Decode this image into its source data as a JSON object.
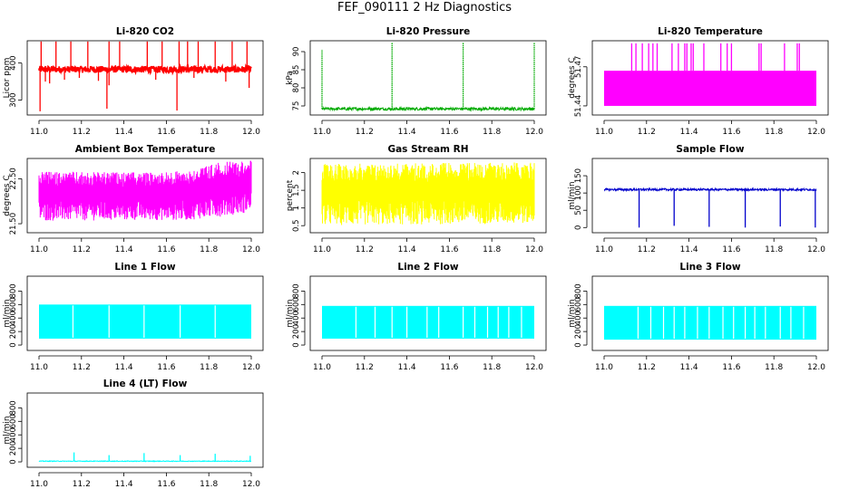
{
  "title": "FEF_090111  2 Hz Diagnostics",
  "chart_data": [
    {
      "type": "line",
      "title": "Li-820 CO2",
      "ylabel": "Licor ppm",
      "xlim": [
        11.0,
        12.0
      ],
      "ylim": [
        260,
        460
      ],
      "xticks": [
        "11.0",
        "11.2",
        "11.4",
        "11.6",
        "11.8",
        "12.0"
      ],
      "yticks": [
        300,
        400
      ],
      "color": "#ff0000",
      "style": "noisy-band",
      "baseline": 383,
      "band": [
        374,
        392
      ],
      "dips": [
        [
          11.005,
          270
        ],
        [
          11.03,
          350
        ],
        [
          11.05,
          345
        ],
        [
          11.12,
          355
        ],
        [
          11.19,
          360
        ],
        [
          11.28,
          352
        ],
        [
          11.32,
          277
        ],
        [
          11.33,
          340
        ],
        [
          11.55,
          355
        ],
        [
          11.65,
          272
        ],
        [
          11.73,
          360
        ],
        [
          11.88,
          350
        ],
        [
          11.99,
          333
        ]
      ],
      "spikes": [
        [
          11.01,
          458
        ],
        [
          11.08,
          458
        ],
        [
          11.15,
          458
        ],
        [
          11.23,
          458
        ],
        [
          11.33,
          458
        ],
        [
          11.38,
          458
        ],
        [
          11.51,
          458
        ],
        [
          11.58,
          458
        ],
        [
          11.66,
          458
        ],
        [
          11.7,
          458
        ],
        [
          11.75,
          458
        ],
        [
          11.83,
          458
        ],
        [
          11.91,
          458
        ],
        [
          11.98,
          458
        ]
      ]
    },
    {
      "type": "line",
      "title": "Li-820 Pressure",
      "ylabel": "kPa",
      "xlim": [
        11.0,
        12.0
      ],
      "ylim": [
        72.5,
        93
      ],
      "xticks": [
        "11.0",
        "11.2",
        "11.4",
        "11.6",
        "11.8",
        "12.0"
      ],
      "yticks": [
        75,
        80,
        85,
        90
      ],
      "color": "#00aa00",
      "style": "flat-spikes",
      "baseline": 74.2,
      "band": [
        73.8,
        74.6
      ],
      "spikes": [
        [
          11.0,
          90.5
        ],
        [
          11.33,
          92.5
        ],
        [
          11.665,
          92.5
        ],
        [
          12.0,
          92.5
        ]
      ]
    },
    {
      "type": "line",
      "title": "Li-820 Temperature",
      "ylabel": "degrees C",
      "xlim": [
        11.0,
        12.0
      ],
      "ylim": [
        51.433,
        51.49
      ],
      "xticks": [
        "11.0",
        "11.2",
        "11.4",
        "11.6",
        "11.8",
        "12.0"
      ],
      "yticks": [
        51.44,
        51.47
      ],
      "color": "#ff00ff",
      "style": "block-spikes",
      "band": [
        51.44,
        51.467
      ],
      "spikes": [
        [
          11.13,
          51.488
        ],
        [
          11.15,
          51.488
        ],
        [
          11.18,
          51.488
        ],
        [
          11.21,
          51.488
        ],
        [
          11.23,
          51.488
        ],
        [
          11.25,
          51.488
        ],
        [
          11.32,
          51.488
        ],
        [
          11.35,
          51.488
        ],
        [
          11.38,
          51.488
        ],
        [
          11.39,
          51.488
        ],
        [
          11.41,
          51.488
        ],
        [
          11.42,
          51.488
        ],
        [
          11.47,
          51.488
        ],
        [
          11.55,
          51.488
        ],
        [
          11.58,
          51.488
        ],
        [
          11.6,
          51.488
        ],
        [
          11.73,
          51.488
        ],
        [
          11.74,
          51.488
        ],
        [
          11.85,
          51.488
        ],
        [
          11.91,
          51.488
        ],
        [
          11.92,
          51.488
        ]
      ]
    },
    {
      "type": "line",
      "title": "Ambient Box Temperature",
      "ylabel": "degrees C",
      "xlim": [
        11.0,
        12.0
      ],
      "ylim": [
        21.3,
        22.95
      ],
      "xticks": [
        "11.0",
        "11.2",
        "11.4",
        "11.6",
        "11.8",
        "12.0"
      ],
      "yticks": [
        21.5,
        22.5
      ],
      "color": "#ff00ff",
      "style": "noisy-fill",
      "band_low": [
        [
          11.0,
          21.62
        ],
        [
          11.7,
          21.64
        ],
        [
          11.85,
          21.72
        ],
        [
          12.0,
          21.82
        ]
      ],
      "band_high": [
        [
          11.0,
          22.6
        ],
        [
          11.5,
          22.58
        ],
        [
          11.7,
          22.62
        ],
        [
          11.85,
          22.8
        ],
        [
          12.0,
          22.85
        ]
      ]
    },
    {
      "type": "line",
      "title": "Gas Stream RH",
      "ylabel": "percent",
      "xlim": [
        11.0,
        12.0
      ],
      "ylim": [
        0.3,
        2.4
      ],
      "xticks": [
        "11.0",
        "11.2",
        "11.4",
        "11.6",
        "11.8",
        "12.0"
      ],
      "yticks": [
        0.5,
        1.0,
        1.5,
        2.0
      ],
      "color": "#ffff00",
      "style": "noisy-fill",
      "band_low": [
        [
          11.0,
          0.6
        ],
        [
          12.0,
          0.65
        ]
      ],
      "band_high": [
        [
          11.0,
          2.15
        ],
        [
          12.0,
          2.2
        ]
      ]
    },
    {
      "type": "line",
      "title": "Sample Flow",
      "ylabel": "ml/min",
      "xlim": [
        11.0,
        12.0
      ],
      "ylim": [
        -15,
        200
      ],
      "xticks": [
        "11.0",
        "11.2",
        "11.4",
        "11.6",
        "11.8",
        "12.0"
      ],
      "yticks": [
        0,
        50,
        100,
        150
      ],
      "color": "#0000cc",
      "style": "flat-dips",
      "baseline": 110,
      "band": [
        107,
        113
      ],
      "dips": [
        [
          11.165,
          0
        ],
        [
          11.33,
          5
        ],
        [
          11.495,
          2
        ],
        [
          11.665,
          0
        ],
        [
          11.83,
          3
        ],
        [
          11.995,
          0
        ]
      ]
    },
    {
      "type": "line",
      "title": "Line 1 Flow",
      "ylabel": "ml/min",
      "xlim": [
        11.0,
        12.0
      ],
      "ylim": [
        -80,
        1020
      ],
      "xticks": [
        "11.0",
        "11.2",
        "11.4",
        "11.6",
        "11.8",
        "12.0"
      ],
      "yticks": [
        0,
        200,
        400,
        600,
        800
      ],
      "color": "#00ffff",
      "style": "block-gaps",
      "band": [
        95,
        600
      ],
      "gaps": [
        11.16,
        11.33,
        11.495,
        11.665,
        11.83
      ]
    },
    {
      "type": "line",
      "title": "Line 2 Flow",
      "ylabel": "ml/min",
      "xlim": [
        11.0,
        12.0
      ],
      "ylim": [
        -80,
        1020
      ],
      "xticks": [
        "11.0",
        "11.2",
        "11.4",
        "11.6",
        "11.8",
        "12.0"
      ],
      "yticks": [
        0,
        200,
        400,
        600,
        800
      ],
      "color": "#00ffff",
      "style": "block-gaps",
      "band": [
        95,
        580
      ],
      "gaps": [
        11.16,
        11.25,
        11.33,
        11.4,
        11.495,
        11.55,
        11.665,
        11.72,
        11.78,
        11.83,
        11.88,
        11.94
      ]
    },
    {
      "type": "line",
      "title": "Line 3 Flow",
      "ylabel": "ml/min",
      "xlim": [
        11.0,
        12.0
      ],
      "ylim": [
        -80,
        1020
      ],
      "xticks": [
        "11.0",
        "11.2",
        "11.4",
        "11.6",
        "11.8",
        "12.0"
      ],
      "yticks": [
        0,
        200,
        400,
        600,
        800
      ],
      "color": "#00ffff",
      "style": "block-gaps",
      "band": [
        80,
        580
      ],
      "gaps": [
        11.16,
        11.22,
        11.28,
        11.33,
        11.38,
        11.44,
        11.495,
        11.56,
        11.61,
        11.665,
        11.71,
        11.76,
        11.83,
        11.88,
        11.94
      ]
    },
    {
      "type": "line",
      "title": "Line 4 (LT) Flow",
      "ylabel": "ml/min",
      "xlim": [
        11.0,
        12.0
      ],
      "ylim": [
        -80,
        1020
      ],
      "xticks": [
        "11.0",
        "11.2",
        "11.4",
        "11.6",
        "11.8",
        "12.0"
      ],
      "yticks": [
        0,
        200,
        400,
        600,
        800
      ],
      "color": "#00ffff",
      "style": "flat-spikes",
      "baseline": 10,
      "band": [
        5,
        15
      ],
      "spikes": [
        [
          11.165,
          140
        ],
        [
          11.33,
          100
        ],
        [
          11.495,
          130
        ],
        [
          11.665,
          100
        ],
        [
          11.83,
          120
        ],
        [
          11.995,
          90
        ]
      ]
    }
  ]
}
